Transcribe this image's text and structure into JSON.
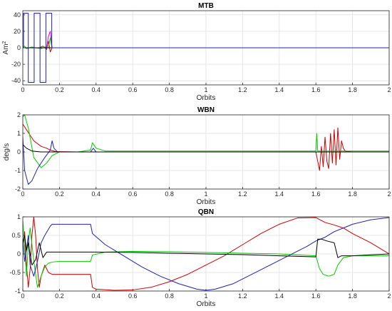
{
  "chart_data": [
    {
      "type": "line",
      "title": "MTB",
      "xlabel": "Orbits",
      "ylabel": "Am",
      "ylabel_sup": "2",
      "xlim": [
        0,
        2
      ],
      "ylim": [
        -45,
        45
      ],
      "xticks": [
        0,
        0.2,
        0.4,
        0.6,
        0.8,
        1,
        1.2,
        1.4,
        1.6,
        1.8,
        2
      ],
      "xtick_labels": [
        "0",
        "0.2",
        "0.4",
        "0.6",
        "0.8",
        "1",
        "1.2",
        "1.4",
        "1.6",
        "1.8",
        "2"
      ],
      "yticks": [
        -40,
        -20,
        0,
        20,
        40
      ],
      "ytick_labels": [
        "-40",
        "-20",
        "0",
        "20",
        "40"
      ],
      "grid": true,
      "series": [
        {
          "color": "#cc0000",
          "x": [
            0,
            0.03,
            0.06,
            0.09,
            0.11,
            0.13,
            0.14,
            0.15,
            0.16,
            0.18,
            0.3,
            2
          ],
          "y": [
            0,
            0,
            0,
            0,
            2,
            -2,
            8,
            -5,
            0,
            0,
            0,
            0
          ]
        },
        {
          "color": "#00cc00",
          "x": [
            0,
            0.01,
            0.02,
            0.05,
            0.07,
            0.1,
            0.12,
            0.14,
            0.145,
            0.15,
            0.155,
            0.16,
            0.2,
            2
          ],
          "y": [
            0,
            2,
            -1,
            1,
            0,
            -1,
            1,
            0,
            7,
            12,
            5,
            0,
            0,
            0
          ]
        },
        {
          "color": "#dd00dd",
          "x": [
            0,
            0.13,
            0.14,
            0.15,
            0.16,
            0.2,
            2
          ],
          "y": [
            0,
            0,
            14,
            20,
            0,
            0,
            0
          ]
        },
        {
          "color": "#000000",
          "x": [
            0,
            0.15,
            0.2,
            2
          ],
          "y": [
            0,
            0,
            0,
            0
          ]
        },
        {
          "color": "#2222aa",
          "x": [
            0,
            0.004,
            0.004,
            0.03,
            0.03,
            0.062,
            0.062,
            0.094,
            0.094,
            0.126,
            0.126,
            0.158,
            0.158,
            2
          ],
          "y": [
            0,
            0,
            42,
            42,
            -42,
            -42,
            42,
            42,
            -42,
            -42,
            42,
            42,
            0,
            0
          ]
        }
      ]
    },
    {
      "type": "line",
      "title": "WBN",
      "xlabel": "Orbits",
      "ylabel": "deg/s",
      "xlim": [
        0,
        2
      ],
      "ylim": [
        -2,
        2
      ],
      "xticks": [
        0,
        0.2,
        0.4,
        0.6,
        0.8,
        1,
        1.2,
        1.4,
        1.6,
        1.8,
        2
      ],
      "xtick_labels": [
        "0",
        "0.2",
        "0.4",
        "0.6",
        "0.8",
        "1",
        "1.2",
        "1.4",
        "1.6",
        "1.8",
        "2"
      ],
      "yticks": [
        -2,
        -1,
        0,
        1,
        2
      ],
      "ytick_labels": [
        "-2",
        "-1",
        "0",
        "1",
        "2"
      ],
      "grid": true,
      "series": [
        {
          "color": "#cc0000",
          "x": [
            0,
            0.02,
            0.04,
            0.06,
            0.1,
            0.13,
            0.15,
            0.18,
            0.3,
            1.6,
            1.61,
            1.62,
            1.63,
            1.64,
            1.65,
            1.66,
            1.67,
            1.68,
            1.69,
            1.7,
            1.71,
            1.72,
            1.73,
            1.74,
            1.75,
            1.76,
            1.8,
            2
          ],
          "y": [
            1.5,
            1.2,
            0.9,
            0.6,
            0.3,
            0.2,
            0.1,
            0.02,
            0,
            0,
            -0.5,
            -1,
            0.3,
            -0.8,
            0.8,
            -0.5,
            -0.9,
            1,
            -0.6,
            1.2,
            -0.7,
            1.3,
            -0.4,
            0.6,
            0.2,
            0.05,
            0,
            0
          ]
        },
        {
          "color": "#00cc00",
          "x": [
            0,
            0.01,
            0.03,
            0.06,
            0.1,
            0.13,
            0.16,
            0.2,
            0.3,
            0.37,
            0.38,
            0.4,
            0.45,
            1.6,
            1.605,
            1.61,
            1.8,
            2
          ],
          "y": [
            1.9,
            2,
            1.3,
            -0.3,
            -0.85,
            -0.6,
            -0.2,
            0,
            0,
            0.1,
            0.5,
            0.2,
            0.05,
            0.05,
            1,
            0.05,
            0.05,
            0.05
          ]
        },
        {
          "color": "#2222aa",
          "x": [
            0,
            0.01,
            0.03,
            0.05,
            0.08,
            0.12,
            0.15,
            0.16,
            0.17,
            0.19,
            0.3,
            0.37,
            0.385,
            0.4,
            0.45,
            2
          ],
          "y": [
            0.8,
            -1,
            -1.75,
            -1.55,
            -0.9,
            -0.3,
            0.1,
            0.6,
            0.2,
            0,
            0,
            0,
            0.2,
            0,
            0,
            0
          ]
        },
        {
          "color": "#000000",
          "x": [
            0,
            0.02,
            0.05,
            0.1,
            0.15,
            0.2,
            2
          ],
          "y": [
            0.4,
            0.2,
            0.05,
            0,
            0,
            0,
            0
          ]
        }
      ]
    },
    {
      "type": "line",
      "title": "QBN",
      "xlabel": "Orbits",
      "ylabel": "",
      "xlim": [
        0,
        2
      ],
      "ylim": [
        -1,
        1
      ],
      "xticks": [
        0,
        0.2,
        0.4,
        0.6,
        0.8,
        1,
        1.2,
        1.4,
        1.6,
        1.8,
        2
      ],
      "xtick_labels": [
        "0",
        "0.2",
        "0.4",
        "0.6",
        "0.8",
        "1",
        "1.2",
        "1.4",
        "1.6",
        "1.8",
        "2"
      ],
      "yticks": [
        -1,
        -0.5,
        0,
        0.5,
        1
      ],
      "ytick_labels": [
        "-1",
        "-0.5",
        "0",
        "0.5",
        "1"
      ],
      "grid": true,
      "series": [
        {
          "color": "#cc0000",
          "x": [
            0,
            0.01,
            0.02,
            0.03,
            0.04,
            0.05,
            0.06,
            0.07,
            0.08,
            0.09,
            0.1,
            0.12,
            0.14,
            0.16,
            0.2,
            0.25,
            0.37,
            0.38,
            0.4,
            0.5,
            0.6,
            0.7,
            0.8,
            0.9,
            1,
            1.1,
            1.2,
            1.3,
            1.4,
            1.5,
            1.6,
            1.65,
            1.7,
            1.75,
            1.8,
            1.9,
            2
          ],
          "y": [
            0.2,
            0.6,
            -0.3,
            -0.9,
            -0.4,
            0.5,
            1,
            0.5,
            -0.4,
            -0.9,
            -0.6,
            -0.3,
            -0.5,
            -0.55,
            -0.55,
            -0.55,
            -0.55,
            -0.9,
            -0.95,
            -0.98,
            -0.97,
            -0.9,
            -0.75,
            -0.55,
            -0.3,
            -0.05,
            0.25,
            0.55,
            0.8,
            0.97,
            0.98,
            0.85,
            0.78,
            0.7,
            0.55,
            0.3,
            0
          ]
        },
        {
          "color": "#00cc00",
          "x": [
            0,
            0.01,
            0.02,
            0.03,
            0.04,
            0.06,
            0.08,
            0.1,
            0.12,
            0.14,
            0.16,
            0.2,
            0.37,
            0.38,
            0.45,
            0.6,
            0.8,
            1,
            1.2,
            1.4,
            1.6,
            1.62,
            1.64,
            1.67,
            1.7,
            1.72,
            1.75,
            1.8,
            2
          ],
          "y": [
            0.9,
            0.2,
            -0.6,
            0.3,
            0.7,
            -0.2,
            -0.9,
            -0.6,
            -0.35,
            -0.25,
            -0.22,
            -0.2,
            -0.2,
            -0.03,
            0.05,
            0.07,
            0.06,
            0.04,
            0.02,
            0,
            -0.05,
            -0.4,
            -0.55,
            -0.6,
            -0.55,
            -0.3,
            -0.1,
            -0.05,
            -0.05
          ]
        },
        {
          "color": "#2222aa",
          "x": [
            0,
            0.01,
            0.02,
            0.03,
            0.04,
            0.06,
            0.08,
            0.1,
            0.12,
            0.15,
            0.16,
            0.2,
            0.37,
            0.38,
            0.45,
            0.55,
            0.65,
            0.75,
            0.85,
            0.95,
            1,
            1.05,
            1.15,
            1.25,
            1.35,
            1.45,
            1.55,
            1.6,
            1.65,
            1.7,
            1.75,
            1.8,
            1.9,
            2
          ],
          "y": [
            0.4,
            -0.2,
            0.1,
            0.5,
            -0.3,
            -0.6,
            -0.2,
            0.3,
            0.5,
            0.75,
            0.8,
            0.8,
            0.8,
            0.55,
            0.25,
            -0.05,
            -0.35,
            -0.6,
            -0.8,
            -0.95,
            -0.98,
            -0.95,
            -0.8,
            -0.55,
            -0.3,
            -0.05,
            0.2,
            0.35,
            0.45,
            0.6,
            0.7,
            0.8,
            0.92,
            0.98
          ]
        },
        {
          "color": "#000000",
          "x": [
            0,
            0.01,
            0.02,
            0.03,
            0.05,
            0.07,
            0.09,
            0.11,
            0.13,
            0.15,
            0.2,
            0.37,
            0.4,
            0.6,
            0.8,
            1,
            1.2,
            1.4,
            1.6,
            1.61,
            1.63,
            1.66,
            1.7,
            1.72,
            1.74,
            1.8,
            2
          ],
          "y": [
            0.3,
            0.5,
            0.1,
            0.3,
            -0.3,
            -0.15,
            0.3,
            -0.1,
            0.05,
            0.05,
            0.05,
            0.05,
            0.05,
            0.04,
            0.02,
            0,
            -0.02,
            -0.05,
            -0.08,
            0.4,
            0.4,
            0.35,
            0.3,
            -0.1,
            -0.05,
            -0.05,
            0
          ]
        }
      ]
    }
  ]
}
